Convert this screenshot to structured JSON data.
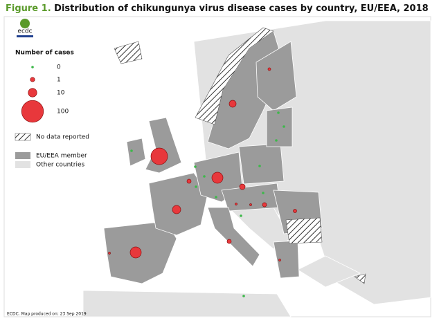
{
  "header": {
    "figure_label": "Figure 1.",
    "title": "Distribution of chikungunya virus disease cases by country, EU/EEA, 2018"
  },
  "logo": "ecdc",
  "legend": {
    "title": "Number of cases",
    "sizes": [
      0,
      1,
      10,
      100
    ],
    "hatch": "No data reported",
    "member": "EU/EEA member",
    "other": "Other countries"
  },
  "footer": "ECDC. Map produced on: 23 Sep 2019"
}
